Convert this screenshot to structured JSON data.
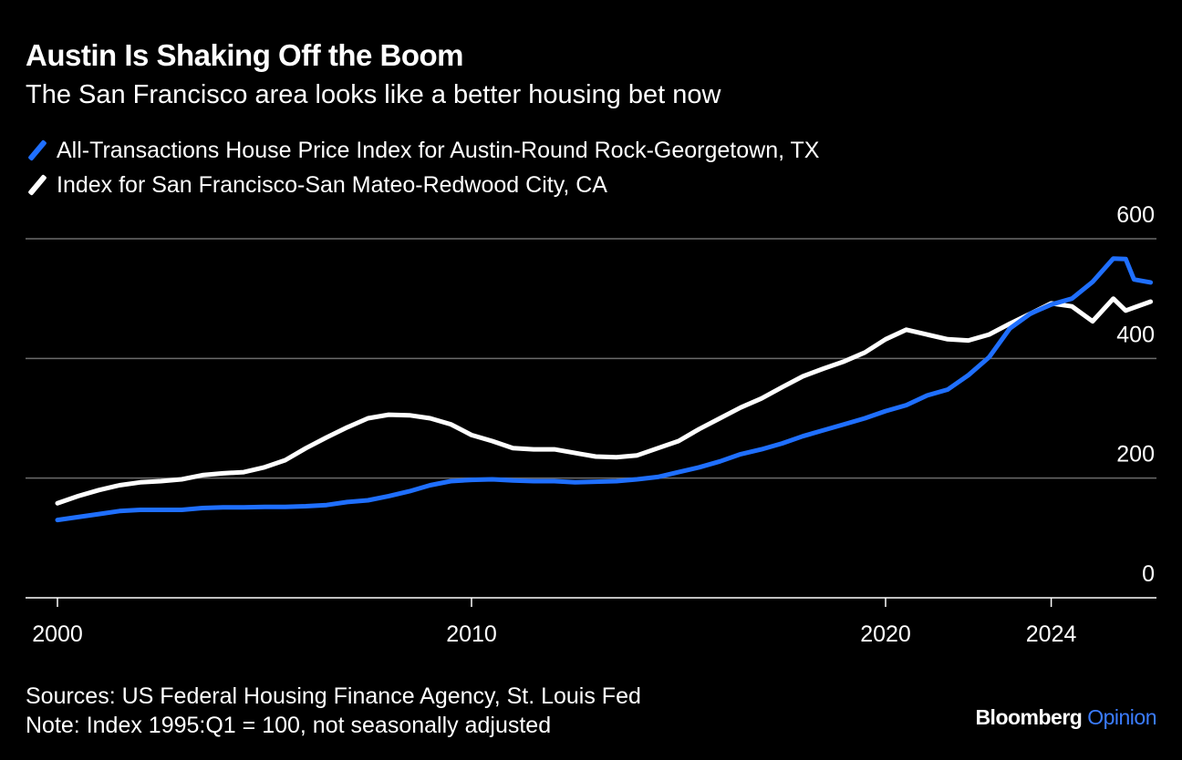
{
  "header": {
    "title": "Austin Is Shaking Off the Boom",
    "subtitle": "The San Francisco area looks like a better housing bet now"
  },
  "footer": {
    "sources": "Sources: US Federal Housing Finance Agency, St. Louis Fed",
    "note": "Note: Index 1995:Q1 = 100, not seasonally adjusted"
  },
  "brand": {
    "name": "Bloomberg",
    "product": "Opinion",
    "product_color": "#3b7cff"
  },
  "chart_data": {
    "type": "line",
    "title": "Austin Is Shaking Off the Boom",
    "subtitle": "The San Francisco area looks like a better housing bet now",
    "xlabel": "",
    "ylabel": "",
    "xlim": [
      1999.2,
      2026.5
    ],
    "ylim": [
      0,
      600
    ],
    "x_ticks": [
      2000,
      2010,
      2020,
      2024
    ],
    "y_ticks": [
      0,
      200,
      400,
      600
    ],
    "grid": true,
    "legend_position": "top-left",
    "series": [
      {
        "name": "All-Transactions House Price Index for Austin-Round Rock-Georgetown, TX",
        "color": "#1f6fff",
        "points": [
          [
            2000.0,
            130
          ],
          [
            2000.5,
            135
          ],
          [
            2001.0,
            140
          ],
          [
            2001.5,
            145
          ],
          [
            2002.0,
            147
          ],
          [
            2002.5,
            147
          ],
          [
            2003.0,
            147
          ],
          [
            2003.5,
            150
          ],
          [
            2004.0,
            151
          ],
          [
            2004.5,
            151
          ],
          [
            2005.0,
            152
          ],
          [
            2005.5,
            152
          ],
          [
            2006.0,
            153
          ],
          [
            2006.5,
            155
          ],
          [
            2007.0,
            160
          ],
          [
            2007.5,
            163
          ],
          [
            2008.0,
            170
          ],
          [
            2008.5,
            178
          ],
          [
            2009.0,
            188
          ],
          [
            2009.5,
            195
          ],
          [
            2010.0,
            197
          ],
          [
            2010.5,
            198
          ],
          [
            2011.0,
            196
          ],
          [
            2011.5,
            195
          ],
          [
            2012.0,
            195
          ],
          [
            2012.5,
            193
          ],
          [
            2013.0,
            194
          ],
          [
            2013.5,
            195
          ],
          [
            2014.0,
            198
          ],
          [
            2014.5,
            202
          ],
          [
            2015.0,
            210
          ],
          [
            2015.5,
            218
          ],
          [
            2016.0,
            228
          ],
          [
            2016.5,
            240
          ],
          [
            2017.0,
            248
          ],
          [
            2017.5,
            258
          ],
          [
            2018.0,
            270
          ],
          [
            2018.5,
            280
          ],
          [
            2019.0,
            290
          ],
          [
            2019.5,
            300
          ],
          [
            2020.0,
            312
          ],
          [
            2020.5,
            322
          ],
          [
            2021.0,
            338
          ],
          [
            2021.5,
            348
          ],
          [
            2022.0,
            372
          ],
          [
            2022.5,
            402
          ],
          [
            2023.0,
            450
          ],
          [
            2023.5,
            475
          ],
          [
            2024.0,
            490
          ],
          [
            2024.5,
            500
          ],
          [
            2025.0,
            528
          ],
          [
            2025.5,
            567
          ],
          [
            2025.8,
            566
          ],
          [
            2026.0,
            532
          ],
          [
            2026.4,
            527
          ]
        ]
      },
      {
        "name": "Index for San Francisco-San Mateo-Redwood City, CA",
        "color": "#ffffff",
        "points": [
          [
            2000.0,
            158
          ],
          [
            2000.5,
            170
          ],
          [
            2001.0,
            180
          ],
          [
            2001.5,
            188
          ],
          [
            2002.0,
            193
          ],
          [
            2002.5,
            195
          ],
          [
            2003.0,
            198
          ],
          [
            2003.5,
            205
          ],
          [
            2004.0,
            208
          ],
          [
            2004.5,
            210
          ],
          [
            2005.0,
            218
          ],
          [
            2005.5,
            230
          ],
          [
            2006.0,
            250
          ],
          [
            2006.5,
            268
          ],
          [
            2007.0,
            285
          ],
          [
            2007.5,
            300
          ],
          [
            2008.0,
            306
          ],
          [
            2008.5,
            305
          ],
          [
            2009.0,
            300
          ],
          [
            2009.5,
            290
          ],
          [
            2010.0,
            272
          ],
          [
            2010.5,
            262
          ],
          [
            2011.0,
            250
          ],
          [
            2011.5,
            248
          ],
          [
            2012.0,
            248
          ],
          [
            2012.5,
            242
          ],
          [
            2013.0,
            236
          ],
          [
            2013.5,
            235
          ],
          [
            2014.0,
            238
          ],
          [
            2014.5,
            250
          ],
          [
            2015.0,
            262
          ],
          [
            2015.5,
            282
          ],
          [
            2016.0,
            300
          ],
          [
            2016.5,
            318
          ],
          [
            2017.0,
            333
          ],
          [
            2017.5,
            352
          ],
          [
            2018.0,
            370
          ],
          [
            2018.5,
            383
          ],
          [
            2019.0,
            395
          ],
          [
            2019.5,
            410
          ],
          [
            2020.0,
            432
          ],
          [
            2020.5,
            448
          ],
          [
            2021.0,
            440
          ],
          [
            2021.5,
            432
          ],
          [
            2022.0,
            430
          ],
          [
            2022.5,
            440
          ],
          [
            2023.0,
            458
          ],
          [
            2023.5,
            475
          ],
          [
            2024.0,
            492
          ],
          [
            2024.5,
            487
          ],
          [
            2025.0,
            462
          ],
          [
            2025.5,
            500
          ],
          [
            2025.8,
            480
          ],
          [
            2026.0,
            485
          ],
          [
            2026.4,
            495
          ]
        ]
      }
    ]
  }
}
